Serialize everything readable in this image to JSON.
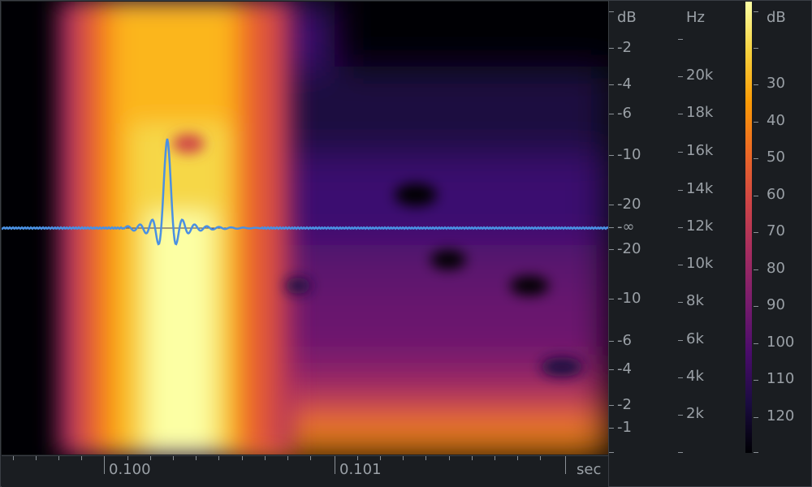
{
  "amp_scale": {
    "unit": "dB",
    "ticks": [
      "-2",
      "-4",
      "-6",
      "-10",
      "-20",
      "-∞",
      "-20",
      "-10",
      "-6",
      "-4",
      "-2",
      "-1"
    ]
  },
  "freq_scale": {
    "unit": "Hz",
    "ticks": [
      "20k",
      "18k",
      "16k",
      "14k",
      "12k",
      "10k",
      "8k",
      "6k",
      "4k",
      "2k"
    ]
  },
  "color_scale": {
    "unit": "dB",
    "ticks": [
      "30",
      "40",
      "50",
      "60",
      "70",
      "80",
      "90",
      "100",
      "110",
      "120"
    ],
    "colors": [
      "#fcffa4",
      "#f7d13d",
      "#fb9b06",
      "#ed6925",
      "#cf4446",
      "#a52c60",
      "#781c6d",
      "#4a0c6b",
      "#1b0c41",
      "#000004"
    ]
  },
  "time_axis": {
    "ticks": [
      "0.100",
      "0.101"
    ],
    "unit": "sec"
  },
  "waveform": {
    "color": "#4a90e2",
    "baseline_color": "#3a3e44"
  }
}
